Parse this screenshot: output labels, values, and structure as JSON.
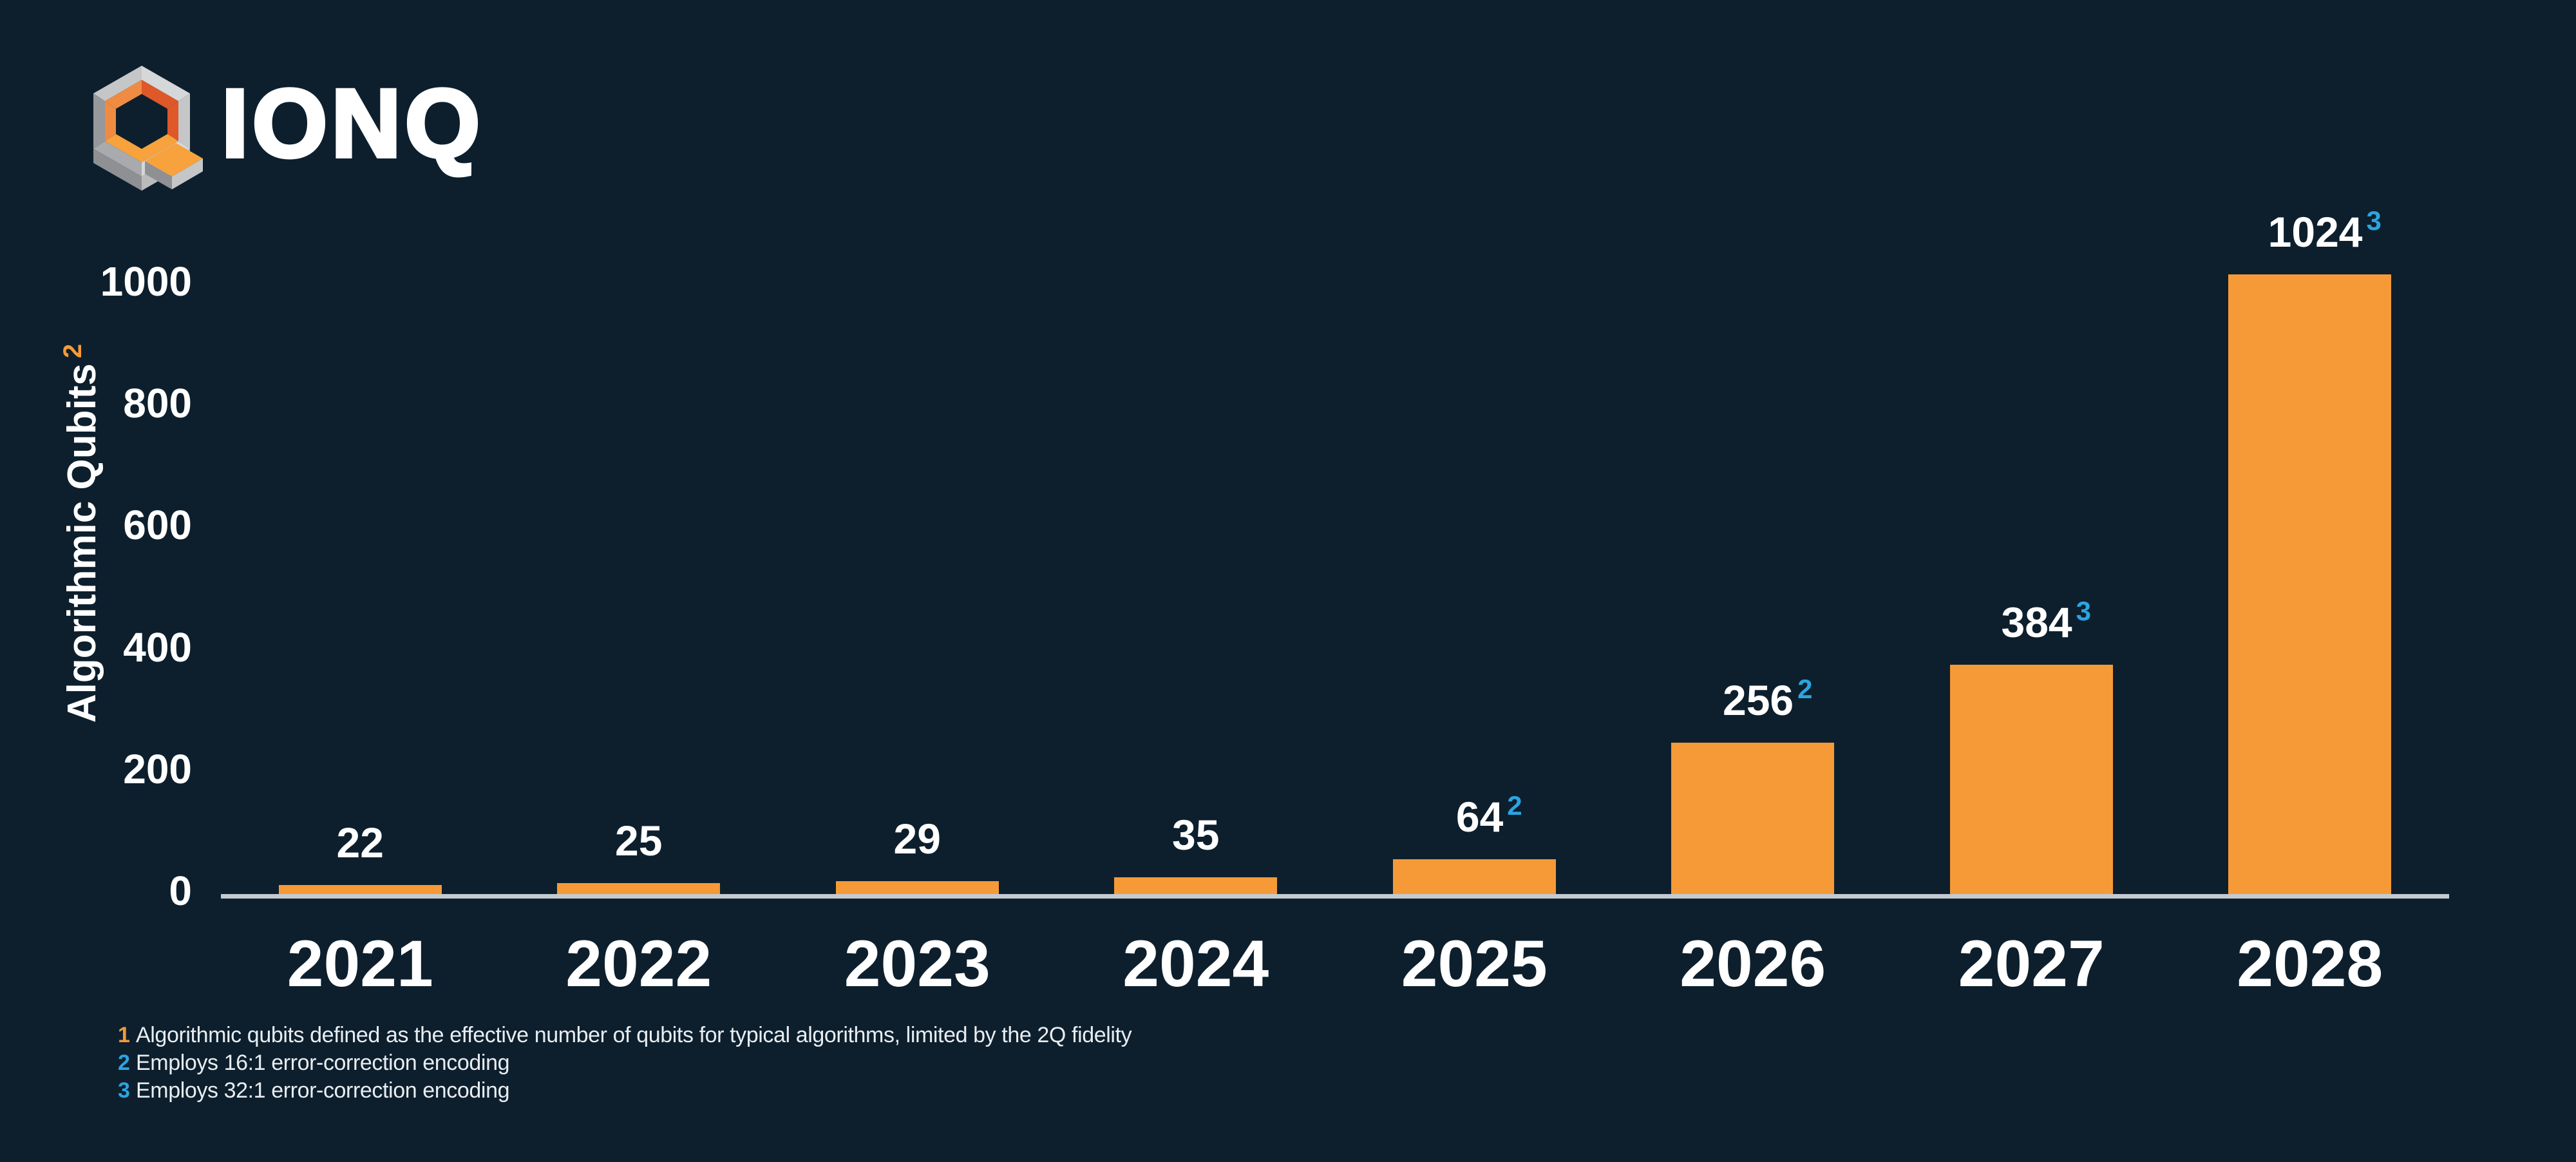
{
  "colors": {
    "background": "#0D1F2D",
    "bar": "#F69A37",
    "superscript_blue": "#2CA4E0",
    "footnote1_orange": "#F69A37",
    "axis_line": "#C2CBD2",
    "text": "#FFFFFF",
    "logo_gray_light": "#D6D7D9",
    "logo_gray_mid": "#C4C6C8",
    "logo_gray_dark": "#8E9093",
    "logo_orange_light": "#EF8B42",
    "logo_orange_dark": "#DE5829",
    "logo_orange_bright": "#F7A23C"
  },
  "logo": {
    "brand": "IONQ"
  },
  "chart_data": {
    "type": "bar",
    "categories": [
      "2021",
      "2022",
      "2023",
      "2024",
      "2025",
      "2026",
      "2027",
      "2028"
    ],
    "values": [
      22,
      25,
      29,
      35,
      64,
      256,
      384,
      1024
    ],
    "value_label_superscripts": [
      "",
      "",
      "",
      "",
      "2",
      "2",
      "3",
      "3"
    ],
    "ylabel": "Algorithmic Qubits",
    "ylabel_superscript": "2",
    "yticks": [
      0,
      200,
      400,
      600,
      800,
      1000
    ],
    "ylim": [
      0,
      1030
    ],
    "xlabel": "",
    "title": "",
    "grid": false,
    "legend": false,
    "bar_color": "#F69A37",
    "value_superscript_color": "#2CA4E0",
    "label_color": "#FFFFFF"
  },
  "footnotes": [
    {
      "marker": "1",
      "marker_color": "#F69A37",
      "text": "Algorithmic qubits defined as the effective number of qubits for typical algorithms, limited by the 2Q fidelity"
    },
    {
      "marker": "2",
      "marker_color": "#2CA4E0",
      "text": "Employs 16:1 error-correction encoding"
    },
    {
      "marker": "3",
      "marker_color": "#2CA4E0",
      "text": "Employs 32:1 error-correction encoding"
    }
  ]
}
